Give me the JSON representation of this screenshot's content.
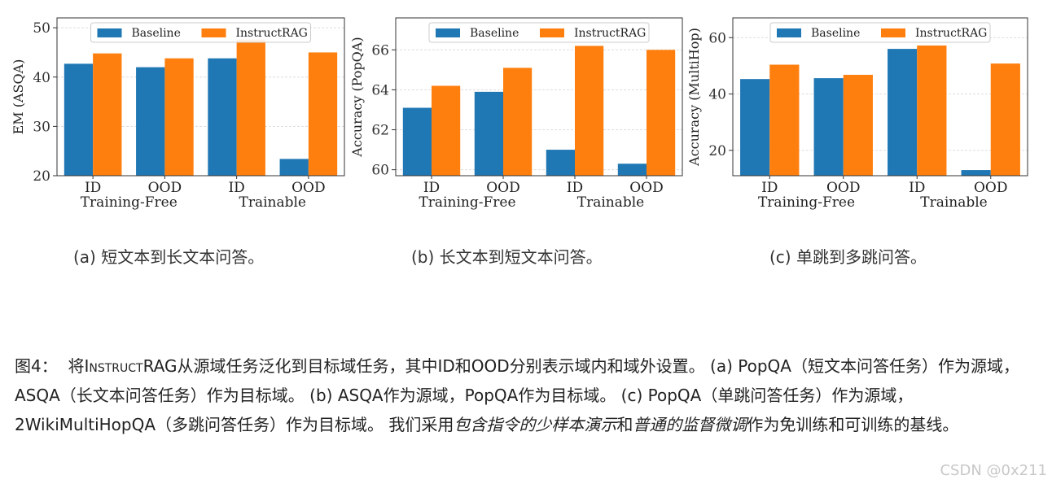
{
  "colors": {
    "baseline": "#1f77b4",
    "instructrag": "#ff7f0e"
  },
  "chart_data": [
    {
      "type": "bar",
      "ylabel": "EM (ASQA)",
      "ylim": [
        20,
        52
      ],
      "yticks": [
        20,
        30,
        40,
        50
      ],
      "categories": [
        "ID",
        "OOD",
        "ID",
        "OOD"
      ],
      "groups": [
        "Training-Free",
        "Trainable"
      ],
      "legend": "top-center",
      "grid": true,
      "series": [
        {
          "name": "Baseline",
          "values": [
            42.7,
            42.0,
            43.8,
            23.4
          ]
        },
        {
          "name": "InstructRAG",
          "values": [
            44.8,
            43.8,
            47.6,
            45.0
          ]
        }
      ],
      "caption_label": "(a)",
      "caption_text": "短文本到长文本问答。"
    },
    {
      "type": "bar",
      "ylabel": "Accuracy (PopQA)",
      "ylim": [
        59.7,
        67.6
      ],
      "yticks": [
        60,
        62,
        64,
        66
      ],
      "categories": [
        "ID",
        "OOD",
        "ID",
        "OOD"
      ],
      "groups": [
        "Training-Free",
        "Trainable"
      ],
      "legend": "top-center",
      "grid": true,
      "series": [
        {
          "name": "Baseline",
          "values": [
            63.1,
            63.9,
            61.0,
            60.3
          ]
        },
        {
          "name": "InstructRAG",
          "values": [
            64.2,
            65.1,
            66.2,
            66.0
          ]
        }
      ],
      "caption_label": "(b)",
      "caption_text": "长文本到短文本问答。"
    },
    {
      "type": "bar",
      "ylabel": "Accuracy (MultiHop)",
      "ylim": [
        11,
        67
      ],
      "yticks": [
        20,
        40,
        60
      ],
      "categories": [
        "ID",
        "OOD",
        "ID",
        "OOD"
      ],
      "groups": [
        "Training-Free",
        "Trainable"
      ],
      "legend": "top-center",
      "grid": true,
      "series": [
        {
          "name": "Baseline",
          "values": [
            45.3,
            45.6,
            56.0,
            13.0
          ]
        },
        {
          "name": "InstructRAG",
          "values": [
            50.4,
            46.8,
            57.2,
            50.8
          ]
        }
      ],
      "caption_label": "(c)",
      "caption_text": "单跳到多跳问答。"
    }
  ],
  "caption": {
    "prefix": "图4：",
    "p1": "将",
    "method": "InstructRAG",
    "p2": "从源域任务泛化到目标域任务，其中ID和OOD分别表示域内和域外设置。 (a) PopQA（短文本问答任务）作为源域，ASQA（长文本问答任务）作为目标域。 (b) ASQA作为源域，PopQA作为目标域。 (c) PopQA（单跳问答任务）作为源域，2WikiMultiHopQA（多跳问答任务）作为目标域。 我们采用",
    "italic1": "包含指令的少样本演示",
    "p3": "和",
    "italic2": "普通的监督微调",
    "p4": "作为免训练和可训练的基线。"
  },
  "watermark": "CSDN @0x211"
}
